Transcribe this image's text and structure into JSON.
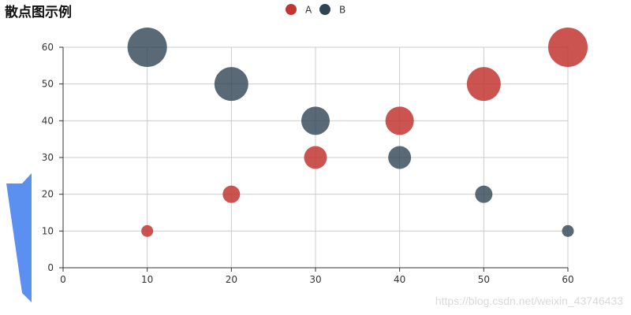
{
  "chart_data": {
    "type": "scatter",
    "title": "散点图示例",
    "xlabel": "",
    "ylabel": "",
    "xlim": [
      0,
      60
    ],
    "ylim": [
      0,
      60
    ],
    "x_ticks": [
      0,
      10,
      20,
      30,
      40,
      50,
      60
    ],
    "y_ticks": [
      0,
      10,
      20,
      30,
      40,
      50,
      60
    ],
    "grid": true,
    "legend_position": "top-center",
    "series": [
      {
        "name": "A",
        "color": "#c23531",
        "points": [
          {
            "x": 10,
            "y": 10
          },
          {
            "x": 20,
            "y": 20
          },
          {
            "x": 30,
            "y": 30
          },
          {
            "x": 40,
            "y": 40
          },
          {
            "x": 50,
            "y": 50
          },
          {
            "x": 60,
            "y": 60
          }
        ]
      },
      {
        "name": "B",
        "color": "#2f4554",
        "points": [
          {
            "x": 10,
            "y": 60
          },
          {
            "x": 20,
            "y": 50
          },
          {
            "x": 30,
            "y": 40
          },
          {
            "x": 40,
            "y": 30
          },
          {
            "x": 50,
            "y": 20
          },
          {
            "x": 60,
            "y": 10
          }
        ]
      }
    ]
  },
  "watermark": "https://blog.csdn.net/weixin_43746433",
  "visual_map": {
    "color": "#5b8ff0"
  }
}
